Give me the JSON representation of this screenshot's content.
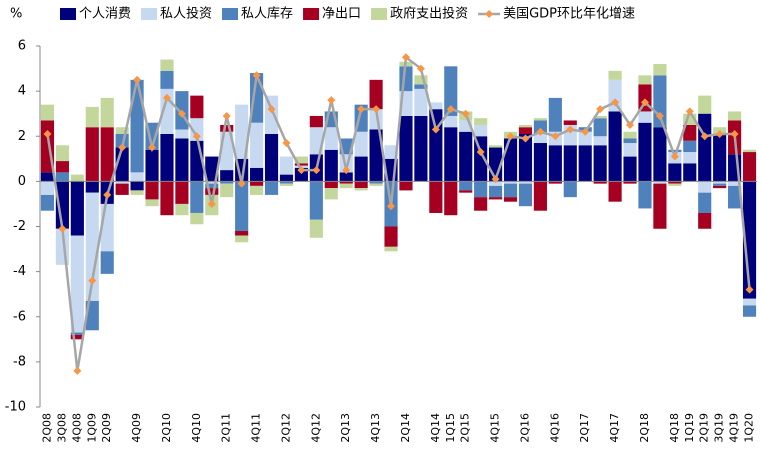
{
  "chart_data": {
    "type": "bar",
    "stacked": true,
    "y_label": "%",
    "categories": [
      "2Q08",
      "3Q08",
      "4Q08",
      "1Q09",
      "2Q09",
      null,
      "4Q09",
      null,
      "2Q10",
      null,
      "4Q10",
      null,
      "2Q11",
      null,
      "4Q11",
      null,
      "2Q12",
      null,
      "4Q12",
      null,
      "2Q13",
      null,
      "4Q13",
      null,
      "2Q14",
      null,
      "4Q14",
      "1Q15",
      "2Q15",
      null,
      "4Q15",
      null,
      "2Q16",
      null,
      "4Q16",
      null,
      "2Q17",
      null,
      "4Q17",
      null,
      "2Q18",
      null,
      "4Q18",
      "1Q19",
      "2Q19",
      "3Q19",
      "4Q19",
      "1Q20"
    ],
    "series": [
      {
        "name": "个人消费",
        "color": "#00007a",
        "values": [
          0.4,
          -2.1,
          -2.4,
          -0.5,
          -1.0,
          1.5,
          -0.4,
          1.4,
          2.1,
          1.9,
          1.8,
          1.1,
          0.5,
          1.0,
          0.6,
          2.1,
          0.3,
          0.6,
          1.2,
          1.4,
          0.4,
          1.1,
          2.3,
          1.0,
          2.9,
          2.9,
          3.2,
          2.4,
          2.2,
          2.0,
          1.5,
          1.9,
          2.1,
          1.7,
          1.6,
          1.6,
          1.6,
          1.6,
          3.1,
          1.1,
          2.6,
          2.4,
          0.8,
          0.8,
          3.0,
          2.1,
          1.2,
          -5.2
        ]
      },
      {
        "name": "私人投资",
        "color": "#c6d9f1",
        "values": [
          -0.6,
          -1.6,
          -4.3,
          -4.8,
          -2.1,
          -0.1,
          0.4,
          0.0,
          2.0,
          0.4,
          1.0,
          -0.1,
          1.7,
          2.4,
          2.0,
          1.7,
          0.8,
          0.1,
          1.2,
          1.0,
          0.8,
          1.1,
          0.9,
          0.6,
          1.1,
          1.2,
          0.3,
          0.5,
          0.5,
          0.5,
          -0.2,
          -0.1,
          -0.1,
          0.4,
          0.6,
          0.9,
          0.6,
          0.4,
          1.4,
          0.6,
          0.5,
          -0.1,
          0.5,
          0.5,
          -0.5,
          -0.1,
          -0.2,
          -0.3
        ]
      },
      {
        "name": "私人库存",
        "color": "#4f81bd",
        "values": [
          -0.7,
          0.4,
          -0.1,
          -1.3,
          -1.0,
          0.6,
          4.1,
          1.2,
          0.8,
          1.7,
          -1.4,
          -0.2,
          -0.1,
          -2.2,
          2.2,
          -0.6,
          -0.1,
          0.0,
          -1.7,
          0.7,
          0.7,
          1.2,
          -0.1,
          -2.0,
          1.1,
          0.2,
          0.0,
          2.2,
          -0.4,
          -0.7,
          -0.5,
          -0.6,
          -1.0,
          0.6,
          1.5,
          -0.7,
          0.2,
          0.8,
          0.0,
          0.2,
          -1.2,
          2.3,
          0.1,
          0.5,
          -0.9,
          -0.1,
          -1.0,
          -0.5
        ]
      },
      {
        "name": "净出口",
        "color": "#a50021",
        "values": [
          2.3,
          0.5,
          -0.2,
          2.4,
          2.4,
          -0.5,
          0.0,
          -0.8,
          -1.5,
          -1.0,
          1.0,
          -0.3,
          0.3,
          -0.2,
          -0.2,
          0.0,
          0.0,
          0.1,
          0.5,
          -0.3,
          -0.1,
          -0.3,
          1.3,
          -0.9,
          -0.4,
          0.0,
          -1.4,
          -1.5,
          -0.1,
          -0.6,
          -0.1,
          -0.2,
          0.3,
          -1.3,
          -0.1,
          0.2,
          0.0,
          -0.1,
          -0.9,
          -0.1,
          1.2,
          -2.0,
          -0.1,
          0.7,
          -0.7,
          -0.1,
          1.5,
          1.3
        ]
      },
      {
        "name": "政府支出投资",
        "color": "#c3d69b",
        "values": [
          0.7,
          0.7,
          0.3,
          0.9,
          1.3,
          0.3,
          -0.2,
          -0.3,
          0.5,
          -0.5,
          -0.5,
          -0.9,
          -0.6,
          -0.3,
          -0.4,
          0.0,
          -0.1,
          0.3,
          -0.8,
          -0.5,
          -0.2,
          -0.1,
          -0.1,
          -0.2,
          0.2,
          0.4,
          0.0,
          0.0,
          0.4,
          0.3,
          0.1,
          0.3,
          0.1,
          0.1,
          0.0,
          0.0,
          0.0,
          0.1,
          0.4,
          0.3,
          0.4,
          0.5,
          -0.1,
          0.5,
          0.8,
          0.3,
          0.4,
          0.1
        ]
      }
    ],
    "line": {
      "name": "美国GDP环比年化增速",
      "color": "#a6a6a6",
      "marker_color": "#f79646",
      "values": [
        2.1,
        -2.1,
        -8.4,
        -4.4,
        -0.6,
        1.5,
        4.5,
        1.5,
        3.7,
        3.0,
        2.0,
        -1.0,
        2.9,
        -0.1,
        4.7,
        3.2,
        1.7,
        0.5,
        0.5,
        3.6,
        0.5,
        3.2,
        3.2,
        -1.1,
        5.5,
        5.0,
        2.3,
        3.2,
        3.0,
        1.3,
        0.1,
        2.0,
        1.9,
        2.2,
        2.0,
        2.3,
        2.2,
        3.2,
        3.5,
        2.5,
        3.5,
        2.9,
        1.1,
        3.1,
        2.0,
        2.1,
        2.1,
        -4.8
      ]
    },
    "ylim": [
      -10,
      6
    ],
    "yticks": [
      -10,
      -8,
      -6,
      -4,
      -2,
      0,
      2,
      4,
      6
    ]
  }
}
